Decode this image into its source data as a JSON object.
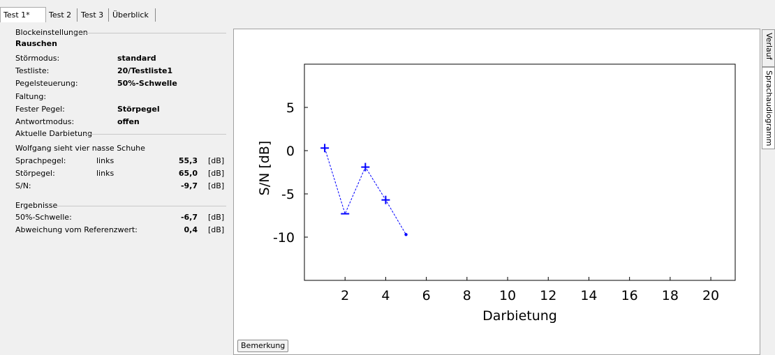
{
  "tabs": [
    "Test 1*",
    "Test 2",
    "Test 3",
    "Überblick"
  ],
  "side_tabs": [
    "Verlauf",
    "Sprachaudiogramm"
  ],
  "block": {
    "group_label": "Blockeinstellungen",
    "title": "Rauschen",
    "rows": [
      {
        "label": "Störmodus:",
        "value": "standard"
      },
      {
        "label": "Testliste:",
        "value": "20/Testliste1"
      },
      {
        "label": "Pegelsteuerung:",
        "value": "50%-Schwelle"
      },
      {
        "label": "Faltung:",
        "value": ""
      },
      {
        "label": "Fester Pegel:",
        "value": "Störpegel"
      },
      {
        "label": "Antwortmodus:",
        "value": "offen"
      }
    ]
  },
  "current": {
    "group_label": "Aktuelle Darbietung",
    "sentence": "Wolfgang sieht vier nasse Schuhe",
    "rows": [
      {
        "label": "Sprachpegel:",
        "side": "links",
        "value": "55,3",
        "unit": "[dB]"
      },
      {
        "label": "Störpegel:",
        "side": "links",
        "value": "65,0",
        "unit": "[dB]"
      },
      {
        "label": "S/N:",
        "side": "",
        "value": "-9,7",
        "unit": "[dB]"
      }
    ]
  },
  "results": {
    "group_label": "Ergebnisse",
    "rows": [
      {
        "label": "50%-Schwelle:",
        "value": "-6,7",
        "unit": "[dB]"
      },
      {
        "label": "Abweichung vom Referenzwert:",
        "value": "0,4",
        "unit": "[dB]"
      }
    ]
  },
  "remark_button": "Bemerkung",
  "chart_data": {
    "type": "scatter",
    "xlabel": "Darbietung",
    "ylabel": "S/N [dB]",
    "xlim": [
      0,
      21.2
    ],
    "ylim": [
      -15,
      10
    ],
    "xticks": [
      2,
      4,
      6,
      8,
      10,
      12,
      14,
      16,
      18,
      20
    ],
    "yticks": [
      5,
      0,
      -5,
      -10
    ],
    "series": [
      {
        "x": [
          1,
          2,
          3,
          4,
          5
        ],
        "y": [
          0.3,
          -7.3,
          -1.9,
          -5.7,
          -9.7
        ],
        "markers": [
          "plus",
          "minus",
          "plus",
          "plus",
          "dot"
        ]
      }
    ],
    "color": "#0000ff",
    "line_style": "dashed",
    "grid": false
  }
}
